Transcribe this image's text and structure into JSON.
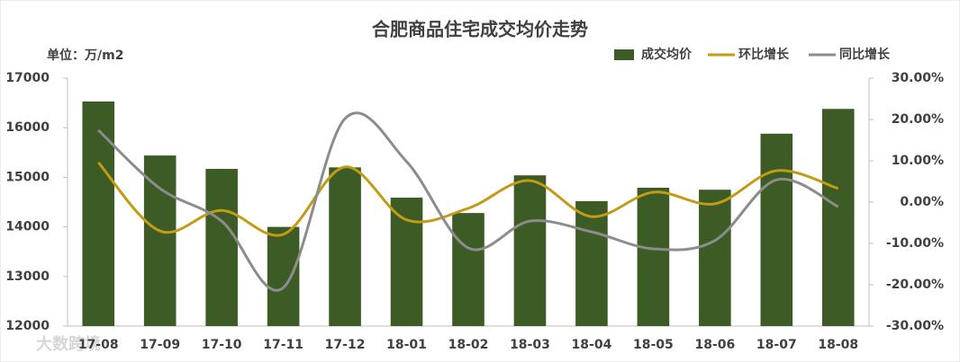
{
  "chart_data": {
    "type": "bar",
    "title": "合肥商品住宅成交均价走势",
    "y_label": "单位：万/m2",
    "watermark": "大数跨境",
    "categories": [
      "17-08",
      "17-09",
      "17-10",
      "17-11",
      "17-12",
      "18-01",
      "18-02",
      "18-03",
      "18-04",
      "18-05",
      "18-06",
      "18-07",
      "18-08"
    ],
    "series": [
      {
        "name": "成交均价",
        "type": "bar",
        "color": "#3d5b24",
        "values": [
          16530,
          15440,
          15170,
          14000,
          15200,
          14590,
          14280,
          15040,
          14520,
          14790,
          14750,
          15880,
          16380
        ]
      },
      {
        "name": "环比增长",
        "type": "line",
        "axis": "y2",
        "color": "#c29b17",
        "values": [
          9.6,
          -7.0,
          -2.0,
          -7.8,
          8.5,
          -4.3,
          -1.5,
          5.2,
          -3.5,
          2.4,
          -0.4,
          7.6,
          3.3
        ]
      },
      {
        "name": "同比增长",
        "type": "line",
        "axis": "y2",
        "color": "#8c8c8c",
        "values": [
          17.4,
          3.3,
          -4.6,
          -20.7,
          20.2,
          9.8,
          -11.1,
          -4.6,
          -7.2,
          -11.3,
          -9.3,
          5.4,
          -1.1
        ]
      }
    ],
    "ylim": [
      12000,
      17000
    ],
    "yticks": [
      12000,
      13000,
      14000,
      15000,
      16000,
      17000
    ],
    "y2lim": [
      -30,
      30
    ],
    "y2ticks": [
      {
        "value": -30,
        "label": "-30.00%"
      },
      {
        "value": -20,
        "label": "-20.00%"
      },
      {
        "value": -10,
        "label": "-10.00%"
      },
      {
        "value": 0,
        "label": "0.00%"
      },
      {
        "value": 10,
        "label": "10.00%"
      },
      {
        "value": 20,
        "label": "20.00%"
      },
      {
        "value": 30,
        "label": "30.00%"
      }
    ],
    "grid": false,
    "legend": "top-right"
  }
}
